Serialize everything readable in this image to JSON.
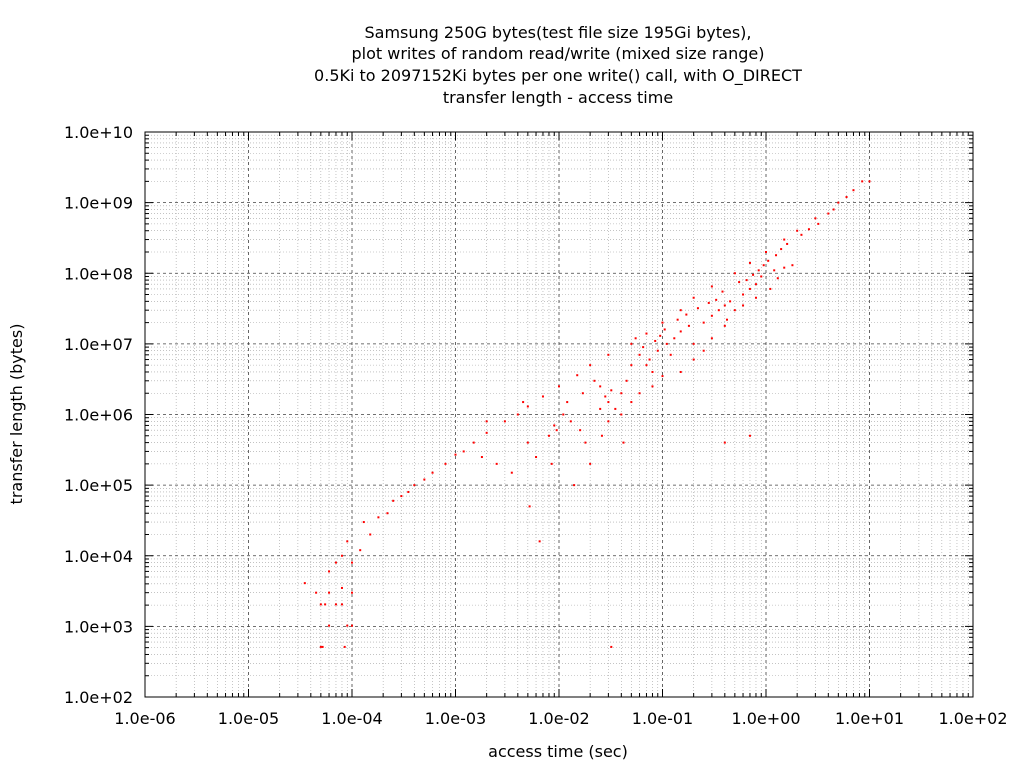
{
  "chart_data": {
    "type": "scatter",
    "title_lines": [
      "Samsung 250G bytes(test file size 195Gi bytes),",
      "plot writes of random read/write (mixed size range)",
      "0.5Ki to 2097152Ki bytes per one write() call, with O_DIRECT",
      "transfer length - access time"
    ],
    "xlabel": "access time (sec)",
    "ylabel": "transfer length (bytes)",
    "x_scale": "log",
    "y_scale": "log",
    "xlim": [
      1e-06,
      100
    ],
    "ylim": [
      100,
      10000000000.0
    ],
    "x_ticks": [
      {
        "value": 1e-06,
        "label": "1.0e-06"
      },
      {
        "value": 1e-05,
        "label": "1.0e-05"
      },
      {
        "value": 0.0001,
        "label": "1.0e-04"
      },
      {
        "value": 0.001,
        "label": "1.0e-03"
      },
      {
        "value": 0.01,
        "label": "1.0e-02"
      },
      {
        "value": 0.1,
        "label": "1.0e-01"
      },
      {
        "value": 1,
        "label": "1.0e+00"
      },
      {
        "value": 10,
        "label": "1.0e+01"
      },
      {
        "value": 100,
        "label": "1.0e+02"
      }
    ],
    "y_ticks": [
      {
        "value": 100.0,
        "label": "1.0e+02"
      },
      {
        "value": 1000.0,
        "label": "1.0e+03"
      },
      {
        "value": 10000.0,
        "label": "1.0e+04"
      },
      {
        "value": 100000.0,
        "label": "1.0e+05"
      },
      {
        "value": 1000000.0,
        "label": "1.0e+06"
      },
      {
        "value": 10000000.0,
        "label": "1.0e+07"
      },
      {
        "value": 100000000.0,
        "label": "1.0e+08"
      },
      {
        "value": 1000000000.0,
        "label": "1.0e+09"
      },
      {
        "value": 10000000000.0,
        "label": "1.0e+10"
      }
    ],
    "grid": {
      "major": true,
      "minor": true
    },
    "point_color": "#ff0000",
    "series": [
      {
        "points": [
          [
            5e-05,
            512
          ],
          [
            5.2e-05,
            512
          ],
          [
            8.5e-05,
            512
          ],
          [
            0.032,
            512
          ],
          [
            3.5e-05,
            4096
          ],
          [
            5e-05,
            2048
          ],
          [
            5.5e-05,
            2048
          ],
          [
            6e-05,
            1024
          ],
          [
            7e-05,
            2048
          ],
          [
            8e-05,
            2048
          ],
          [
            9e-05,
            1024
          ],
          [
            0.0001,
            1024
          ],
          [
            4.5e-05,
            3000
          ],
          [
            6e-05,
            3000
          ],
          [
            8e-05,
            3500
          ],
          [
            0.0001,
            3000
          ],
          [
            6e-05,
            6000
          ],
          [
            7e-05,
            8000
          ],
          [
            8e-05,
            10000
          ],
          [
            0.0001,
            8000
          ],
          [
            9e-05,
            16000
          ],
          [
            0.00012,
            12000
          ],
          [
            0.00015,
            20000
          ],
          [
            0.00013,
            30000
          ],
          [
            0.00018,
            35000
          ],
          [
            0.00022,
            40000
          ],
          [
            0.00025,
            60000
          ],
          [
            0.0003,
            70000
          ],
          [
            0.00035,
            80000
          ],
          [
            0.0004,
            100000
          ],
          [
            0.0005,
            120000
          ],
          [
            0.0006,
            150000
          ],
          [
            0.0008,
            200000
          ],
          [
            0.001,
            270000
          ],
          [
            0.0015,
            400000
          ],
          [
            0.002,
            550000
          ],
          [
            0.003,
            800000
          ],
          [
            0.004,
            1000000
          ],
          [
            0.005,
            1300000
          ],
          [
            0.007,
            1800000
          ],
          [
            0.01,
            2500000
          ],
          [
            0.015,
            3600000
          ],
          [
            0.02,
            5000000
          ],
          [
            0.03,
            7000000
          ],
          [
            0.05,
            10000000
          ],
          [
            0.07,
            14000000
          ],
          [
            0.1,
            20000000
          ],
          [
            0.15,
            30000000
          ],
          [
            0.2,
            45000000
          ],
          [
            0.3,
            65000000
          ],
          [
            0.5,
            100000000
          ],
          [
            0.7,
            140000000
          ],
          [
            1.0,
            200000000
          ],
          [
            1.5,
            300000000
          ],
          [
            2.0,
            400000000
          ],
          [
            3.0,
            600000000
          ],
          [
            5.0,
            1000000000
          ],
          [
            7.0,
            1500000000
          ],
          [
            8.5,
            2000000000
          ],
          [
            10.0,
            2000000000
          ],
          [
            0.0012,
            300000
          ],
          [
            0.0018,
            250000
          ],
          [
            0.0025,
            200000
          ],
          [
            0.0035,
            150000
          ],
          [
            0.005,
            400000
          ],
          [
            0.006,
            250000
          ],
          [
            0.008,
            500000
          ],
          [
            0.009,
            700000
          ],
          [
            0.011,
            1000000
          ],
          [
            0.013,
            800000
          ],
          [
            0.016,
            600000
          ],
          [
            0.018,
            400000
          ],
          [
            0.02,
            200000
          ],
          [
            0.014,
            100000
          ],
          [
            0.0065,
            16000
          ],
          [
            0.0052,
            50000
          ],
          [
            0.012,
            1500000
          ],
          [
            0.017,
            2000000
          ],
          [
            0.022,
            3000000
          ],
          [
            0.025,
            2500000
          ],
          [
            0.03,
            1500000
          ],
          [
            0.035,
            1200000
          ],
          [
            0.04,
            2000000
          ],
          [
            0.045,
            3000000
          ],
          [
            0.05,
            5000000
          ],
          [
            0.06,
            7000000
          ],
          [
            0.07,
            5000000
          ],
          [
            0.08,
            4000000
          ],
          [
            0.09,
            8000000
          ],
          [
            0.11,
            10000000
          ],
          [
            0.12,
            7000000
          ],
          [
            0.13,
            12000000
          ],
          [
            0.15,
            15000000
          ],
          [
            0.18,
            18000000
          ],
          [
            0.2,
            10000000
          ],
          [
            0.25,
            20000000
          ],
          [
            0.3,
            25000000
          ],
          [
            0.35,
            30000000
          ],
          [
            0.4,
            35000000
          ],
          [
            0.45,
            40000000
          ],
          [
            0.5,
            30000000
          ],
          [
            0.6,
            50000000
          ],
          [
            0.7,
            60000000
          ],
          [
            0.8,
            70000000
          ],
          [
            0.9,
            90000000
          ],
          [
            1.2,
            110000000
          ],
          [
            1.5,
            120000000
          ],
          [
            1.8,
            130000000
          ],
          [
            1.3,
            85000000
          ],
          [
            1.1,
            60000000
          ],
          [
            0.8,
            45000000
          ],
          [
            0.6,
            35000000
          ],
          [
            0.4,
            18000000
          ],
          [
            0.3,
            12000000
          ],
          [
            0.25,
            8000000
          ],
          [
            0.2,
            6000000
          ],
          [
            0.15,
            4000000
          ],
          [
            0.1,
            3500000
          ],
          [
            0.08,
            2500000
          ],
          [
            0.06,
            2000000
          ],
          [
            0.05,
            1500000
          ],
          [
            0.04,
            1000000
          ],
          [
            0.03,
            800000
          ],
          [
            0.025,
            1200000
          ],
          [
            0.032,
            2200000
          ],
          [
            0.042,
            400000
          ],
          [
            0.026,
            500000
          ],
          [
            0.002,
            800000
          ],
          [
            0.0045,
            1500000
          ],
          [
            0.0085,
            200000
          ],
          [
            0.0095,
            600000
          ],
          [
            0.028,
            1800000
          ],
          [
            0.055,
            12000000
          ],
          [
            0.065,
            9000000
          ],
          [
            0.075,
            6000000
          ],
          [
            0.085,
            11000000
          ],
          [
            0.095,
            13000000
          ],
          [
            0.105,
            16000000
          ],
          [
            0.14,
            22000000
          ],
          [
            0.17,
            26000000
          ],
          [
            0.22,
            32000000
          ],
          [
            0.28,
            38000000
          ],
          [
            0.33,
            42000000
          ],
          [
            0.38,
            55000000
          ],
          [
            0.42,
            22000000
          ],
          [
            0.55,
            75000000
          ],
          [
            0.65,
            80000000
          ],
          [
            0.75,
            95000000
          ],
          [
            0.85,
            110000000
          ],
          [
            0.95,
            130000000
          ],
          [
            1.05,
            150000000
          ],
          [
            1.25,
            180000000
          ],
          [
            1.4,
            220000000
          ],
          [
            1.6,
            260000000
          ],
          [
            2.2,
            350000000
          ],
          [
            2.6,
            420000000
          ],
          [
            3.2,
            500000000
          ],
          [
            4.0,
            700000000
          ],
          [
            4.5,
            800000000
          ],
          [
            6.0,
            1200000000
          ],
          [
            0.4,
            400000
          ],
          [
            0.7,
            500000
          ]
        ]
      }
    ]
  }
}
